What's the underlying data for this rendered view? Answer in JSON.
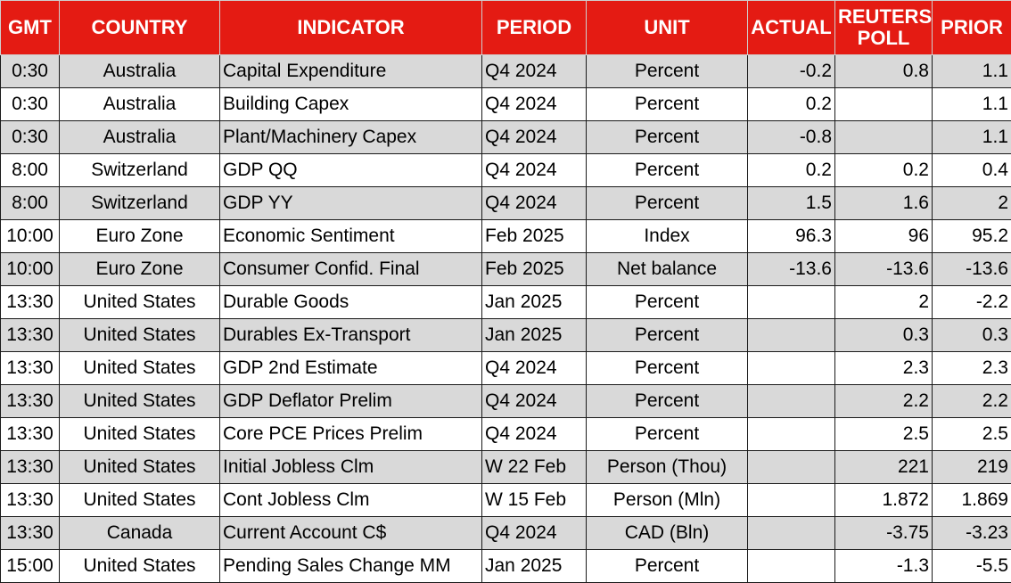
{
  "header": {
    "gmt": "GMT",
    "country": "COUNTRY",
    "indicator": "INDICATOR",
    "period": "PERIOD",
    "unit": "UNIT",
    "actual": "ACTUAL",
    "poll_line1": "REUTERS",
    "poll_line2": "POLL",
    "prior": "PRIOR"
  },
  "header_color": "#e41b13",
  "row_shade_color": "#d9d9d9",
  "rows": [
    {
      "gmt": "0:30",
      "country": "Australia",
      "indicator": "Capital Expenditure",
      "period": "Q4 2024",
      "unit": "Percent",
      "actual": "-0.2",
      "poll": "0.8",
      "prior": "1.1",
      "shaded": true
    },
    {
      "gmt": "0:30",
      "country": "Australia",
      "indicator": "Building Capex",
      "period": "Q4 2024",
      "unit": "Percent",
      "actual": "0.2",
      "poll": "",
      "prior": "1.1",
      "shaded": false
    },
    {
      "gmt": "0:30",
      "country": "Australia",
      "indicator": "Plant/Machinery Capex",
      "period": "Q4 2024",
      "unit": "Percent",
      "actual": "-0.8",
      "poll": "",
      "prior": "1.1",
      "shaded": true
    },
    {
      "gmt": "8:00",
      "country": "Switzerland",
      "indicator": "GDP QQ",
      "period": "Q4 2024",
      "unit": "Percent",
      "actual": "0.2",
      "poll": "0.2",
      "prior": "0.4",
      "shaded": false
    },
    {
      "gmt": "8:00",
      "country": "Switzerland",
      "indicator": "GDP YY",
      "period": "Q4 2024",
      "unit": "Percent",
      "actual": "1.5",
      "poll": "1.6",
      "prior": "2",
      "shaded": true
    },
    {
      "gmt": "10:00",
      "country": "Euro Zone",
      "indicator": "Economic Sentiment",
      "period": "Feb 2025",
      "unit": "Index",
      "actual": "96.3",
      "poll": "96",
      "prior": "95.2",
      "shaded": false
    },
    {
      "gmt": "10:00",
      "country": "Euro Zone",
      "indicator": "Consumer Confid. Final",
      "period": "Feb 2025",
      "unit": "Net balance",
      "actual": "-13.6",
      "poll": "-13.6",
      "prior": "-13.6",
      "shaded": true
    },
    {
      "gmt": "13:30",
      "country": "United States",
      "indicator": "Durable Goods",
      "period": "Jan 2025",
      "unit": "Percent",
      "actual": "",
      "poll": "2",
      "prior": "-2.2",
      "shaded": false
    },
    {
      "gmt": "13:30",
      "country": "United States",
      "indicator": "Durables Ex-Transport",
      "period": "Jan 2025",
      "unit": "Percent",
      "actual": "",
      "poll": "0.3",
      "prior": "0.3",
      "shaded": true
    },
    {
      "gmt": "13:30",
      "country": "United States",
      "indicator": "GDP 2nd Estimate",
      "period": "Q4 2024",
      "unit": "Percent",
      "actual": "",
      "poll": "2.3",
      "prior": "2.3",
      "shaded": false
    },
    {
      "gmt": "13:30",
      "country": "United States",
      "indicator": "GDP Deflator Prelim",
      "period": "Q4 2024",
      "unit": "Percent",
      "actual": "",
      "poll": "2.2",
      "prior": "2.2",
      "shaded": true
    },
    {
      "gmt": "13:30",
      "country": "United States",
      "indicator": "Core PCE Prices Prelim",
      "period": "Q4 2024",
      "unit": "Percent",
      "actual": "",
      "poll": "2.5",
      "prior": "2.5",
      "shaded": false
    },
    {
      "gmt": "13:30",
      "country": "United States",
      "indicator": "Initial Jobless Clm",
      "period": "W 22 Feb",
      "unit": "Person (Thou)",
      "actual": "",
      "poll": "221",
      "prior": "219",
      "shaded": true
    },
    {
      "gmt": "13:30",
      "country": "United States",
      "indicator": "Cont Jobless Clm",
      "period": "W 15 Feb",
      "unit": "Person (Mln)",
      "actual": "",
      "poll": "1.872",
      "prior": "1.869",
      "shaded": false
    },
    {
      "gmt": "13:30",
      "country": "Canada",
      "indicator": "Current Account C$",
      "period": "Q4 2024",
      "unit": "CAD (Bln)",
      "actual": "",
      "poll": "-3.75",
      "prior": "-3.23",
      "shaded": true
    },
    {
      "gmt": "15:00",
      "country": "United States",
      "indicator": "Pending Sales Change MM",
      "period": "Jan 2025",
      "unit": "Percent",
      "actual": "",
      "poll": "-1.3",
      "prior": "-5.5",
      "shaded": false
    }
  ]
}
